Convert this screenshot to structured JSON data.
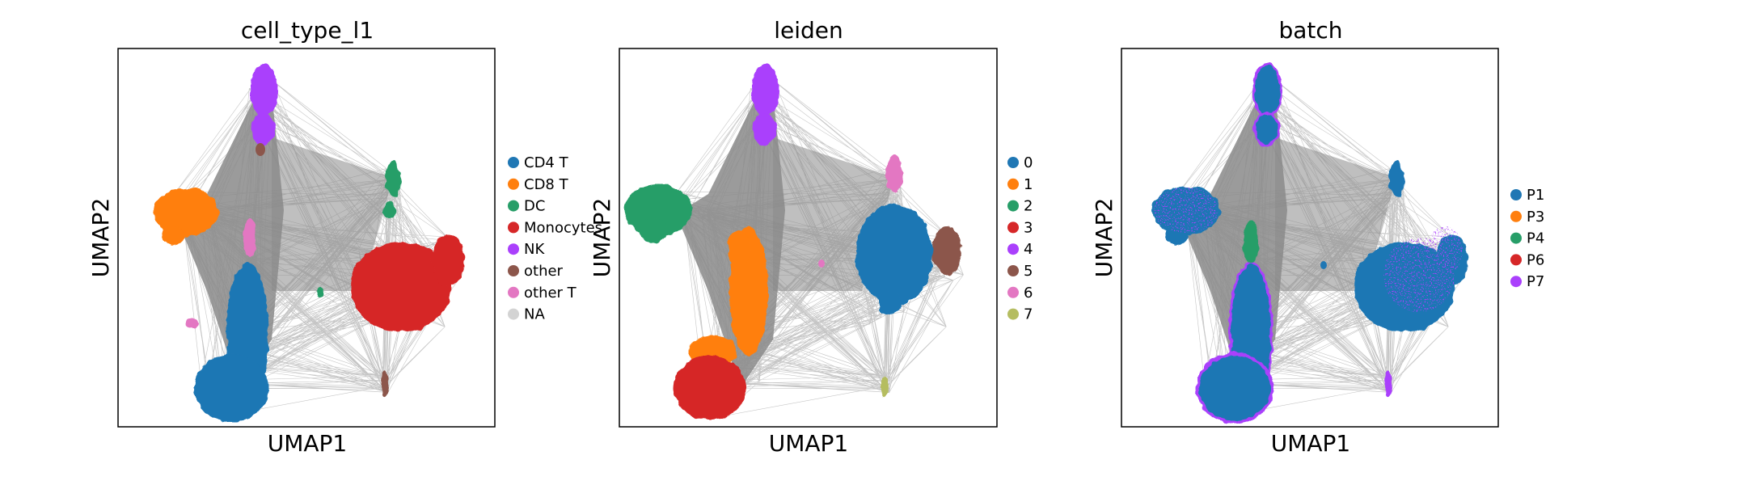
{
  "chart_data": [
    {
      "type": "scatter",
      "title": "cell_type_l1",
      "xlabel": "UMAP1",
      "ylabel": "UMAP2",
      "grid": false,
      "ticks": false,
      "legend_position": "right",
      "connectivity_edges": true,
      "series": [
        {
          "name": "CD4 T",
          "color": "#1f77b4"
        },
        {
          "name": "CD8 T",
          "color": "#ff7f0e"
        },
        {
          "name": "DC",
          "color": "#279e68"
        },
        {
          "name": "Monocytes",
          "color": "#d62728"
        },
        {
          "name": "NK",
          "color": "#aa40fc"
        },
        {
          "name": "other",
          "color": "#8c564b"
        },
        {
          "name": "other T",
          "color": "#e377c2"
        },
        {
          "name": "NA",
          "color": "#d3d3d3"
        }
      ]
    },
    {
      "type": "scatter",
      "title": "leiden",
      "xlabel": "UMAP1",
      "ylabel": "UMAP2",
      "grid": false,
      "ticks": false,
      "legend_position": "right",
      "connectivity_edges": true,
      "series": [
        {
          "name": "0",
          "color": "#1f77b4"
        },
        {
          "name": "1",
          "color": "#ff7f0e"
        },
        {
          "name": "2",
          "color": "#279e68"
        },
        {
          "name": "3",
          "color": "#d62728"
        },
        {
          "name": "4",
          "color": "#aa40fc"
        },
        {
          "name": "5",
          "color": "#8c564b"
        },
        {
          "name": "6",
          "color": "#e377c2"
        },
        {
          "name": "7",
          "color": "#b5bd61"
        }
      ]
    },
    {
      "type": "scatter",
      "title": "batch",
      "xlabel": "UMAP1",
      "ylabel": "UMAP2",
      "grid": false,
      "ticks": false,
      "legend_position": "right",
      "connectivity_edges": true,
      "series": [
        {
          "name": "P1",
          "color": "#1f77b4"
        },
        {
          "name": "P3",
          "color": "#ff7f0e"
        },
        {
          "name": "P4",
          "color": "#279e68"
        },
        {
          "name": "P6",
          "color": "#d62728"
        },
        {
          "name": "P7",
          "color": "#aa40fc"
        }
      ]
    }
  ]
}
